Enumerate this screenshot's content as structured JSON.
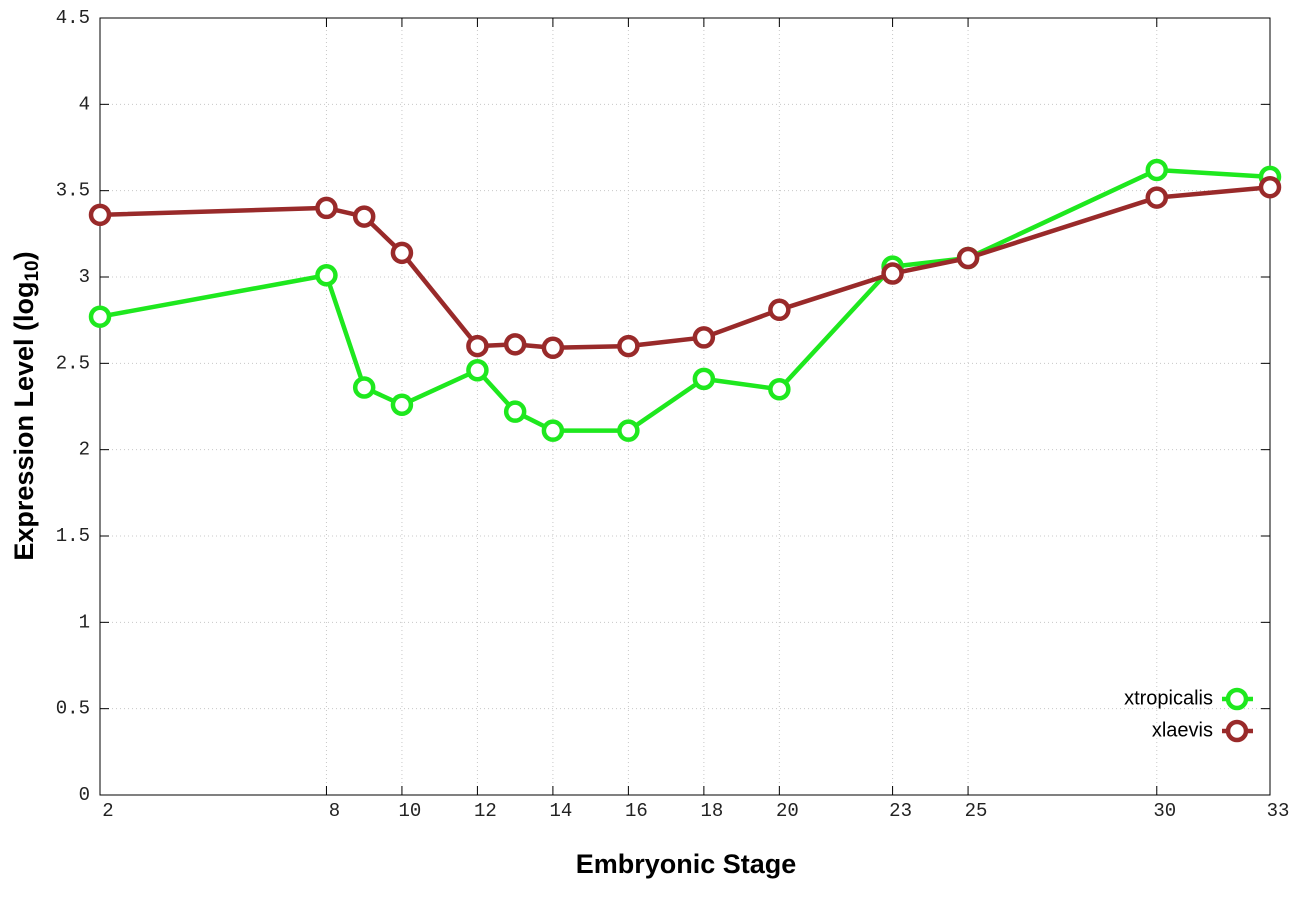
{
  "chart_data": {
    "type": "line",
    "x_label": "Embryonic Stage",
    "y_label": [
      "Expression Level (log",
      "10",
      ")"
    ],
    "x": [
      2,
      8,
      9,
      10,
      12,
      13,
      14,
      16,
      18,
      20,
      23,
      25,
      30,
      33
    ],
    "series": [
      {
        "name": "xtropicalis",
        "color": "#1ee81e",
        "values": [
          2.77,
          3.01,
          2.36,
          2.26,
          2.46,
          2.22,
          2.11,
          2.11,
          2.41,
          2.35,
          3.06,
          3.11,
          3.62,
          3.58
        ]
      },
      {
        "name": "xlaevis",
        "color": "#992a2a",
        "values": [
          3.36,
          3.4,
          3.35,
          3.14,
          2.6,
          2.61,
          2.59,
          2.6,
          2.65,
          2.81,
          3.02,
          3.11,
          3.46,
          3.52
        ]
      }
    ],
    "xlim": [
      2,
      33
    ],
    "xticks": [
      2,
      8,
      10,
      12,
      14,
      16,
      18,
      20,
      23,
      25,
      30,
      33
    ],
    "ylim": [
      0,
      4.5
    ],
    "yticks": [
      0,
      0.5,
      1,
      1.5,
      2,
      2.5,
      3,
      3.5,
      4,
      4.5
    ],
    "grid": true,
    "legend_position": "lower right"
  }
}
